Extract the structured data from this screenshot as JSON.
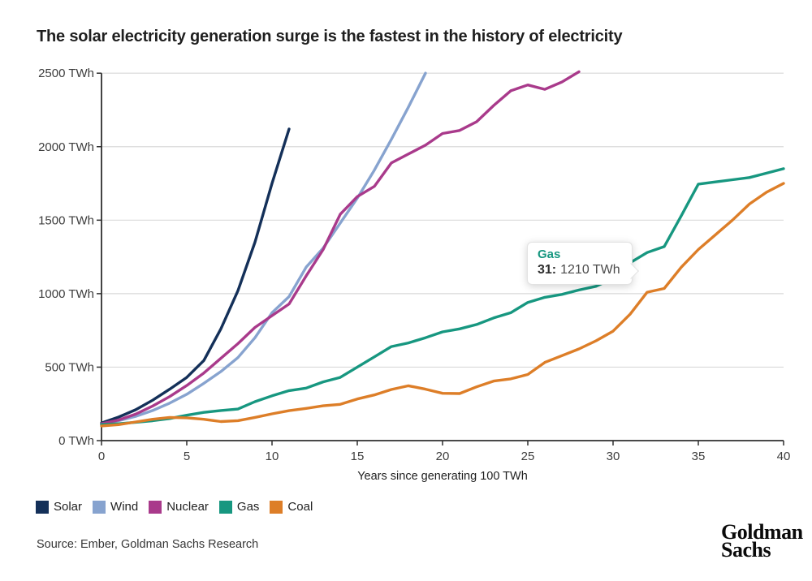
{
  "title": "The solar electricity generation surge is the fastest in the history of electricity",
  "source": "Source: Ember, Goldman Sachs Research",
  "brand": {
    "line1": "Goldman",
    "line2": "Sachs"
  },
  "tooltip": {
    "series": "Gas",
    "x_label": "31:",
    "value_label": "1210 TWh"
  },
  "colors": {
    "solar": "#143059",
    "wind": "#87a3cf",
    "nuclear": "#a93a8b",
    "gas": "#179780",
    "coal": "#dd7e28",
    "grid": "#d9d9d9",
    "axis": "#2f2f2f",
    "tick_text": "#3d3d3d"
  },
  "chart_data": {
    "type": "line",
    "title": "The solar electricity generation surge is the fastest in the history of electricity",
    "xlabel": "Years since generating 100 TWh",
    "ylabel": "TWh",
    "xlim": [
      0,
      40
    ],
    "ylim": [
      0,
      2500
    ],
    "grid": "horizontal",
    "legend_position": "bottom-left",
    "x_ticks": [
      0,
      5,
      10,
      15,
      20,
      25,
      30,
      35,
      40
    ],
    "x_tick_labels": [
      "0",
      "5",
      "10",
      "15",
      "20",
      "25",
      "30",
      "35",
      "40"
    ],
    "y_ticks": [
      0,
      500,
      1000,
      1500,
      2000,
      2500
    ],
    "y_tick_labels": [
      "0 TWh",
      "500 TWh",
      "1000 TWh",
      "1500 TWh",
      "2000 TWh",
      "2500 TWh"
    ],
    "x_unit": "years (index of each value = year since generating 100 TWh)",
    "series": [
      {
        "name": "Solar",
        "color": "#143059",
        "values": [
          120,
          160,
          210,
          275,
          350,
          430,
          545,
          760,
          1020,
          1350,
          1750,
          2120
        ]
      },
      {
        "name": "Wind",
        "color": "#87a3cf",
        "values": [
          110,
          135,
          165,
          205,
          255,
          315,
          390,
          470,
          565,
          700,
          870,
          980,
          1180,
          1310,
          1480,
          1650,
          1840,
          2050,
          2270,
          2500
        ]
      },
      {
        "name": "Nuclear",
        "color": "#a93a8b",
        "values": [
          115,
          140,
          180,
          235,
          300,
          375,
          460,
          560,
          660,
          770,
          850,
          930,
          1120,
          1300,
          1540,
          1660,
          1730,
          1890,
          1950,
          2010,
          2090,
          2110,
          2170,
          2280,
          2380,
          2420,
          2390,
          2440,
          2510
        ]
      },
      {
        "name": "Gas",
        "color": "#179780",
        "values": [
          110,
          115,
          125,
          135,
          150,
          173,
          192,
          205,
          215,
          265,
          305,
          340,
          357,
          400,
          430,
          500,
          570,
          640,
          665,
          700,
          740,
          760,
          790,
          835,
          870,
          940,
          975,
          995,
          1025,
          1050,
          1105,
          1210,
          1280,
          1320,
          1530,
          1745,
          1760,
          1775,
          1790,
          1820,
          1850
        ]
      },
      {
        "name": "Coal",
        "color": "#dd7e28",
        "values": [
          100,
          109,
          127,
          145,
          158,
          155,
          145,
          130,
          136,
          158,
          182,
          204,
          219,
          237,
          247,
          283,
          311,
          348,
          373,
          350,
          322,
          320,
          366,
          405,
          420,
          450,
          532,
          578,
          624,
          679,
          745,
          860,
          1010,
          1035,
          1180,
          1300,
          1400,
          1500,
          1610,
          1690,
          1750
        ]
      }
    ],
    "annotation": {
      "series": "Gas",
      "x": 31,
      "value": 1210,
      "text": "Gas 31: 1210 TWh"
    }
  }
}
